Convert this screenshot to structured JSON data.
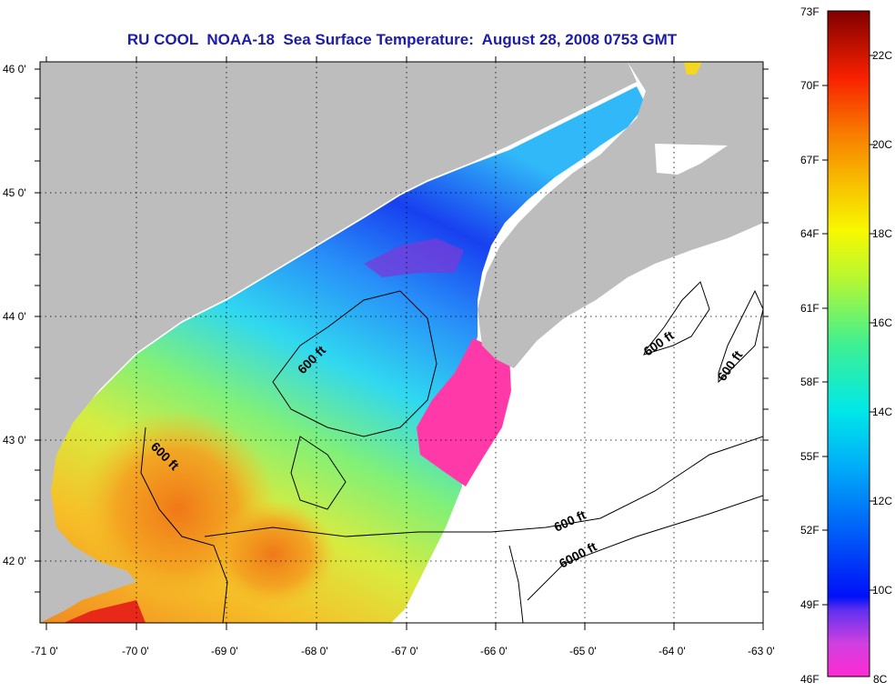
{
  "title": "RU COOL  NOAA-18  Sea Surface Temperature:  August 28, 2008 0753 GMT",
  "lat_ticks": [
    "46 0'",
    "45 0'",
    "44 0'",
    "43 0'",
    "42 0'"
  ],
  "lon_ticks": [
    "-71 0'",
    "-70 0'",
    "-69 0'",
    "-68 0'",
    "-67 0'",
    "-66 0'",
    "-65 0'",
    "-64 0'",
    "-63 0'"
  ],
  "contour_labels": [
    "600 ft",
    "600 ft",
    "600 ft",
    "600 ft",
    "600 ft",
    "6000 ft"
  ],
  "colorbar": {
    "top_label": "73F",
    "bottom_label_f": "46F",
    "bottom_label_c": "8C",
    "fahrenheit": [
      "70F",
      "67F",
      "64F",
      "61F",
      "58F",
      "55F",
      "52F",
      "49F"
    ],
    "celsius": [
      "22C",
      "20C",
      "18C",
      "16C",
      "14C",
      "12C",
      "10C"
    ]
  },
  "colors": {
    "land": "#bdbdbd",
    "no_data": "#ffffff",
    "title": "#1c1ca8",
    "cold_pink": "#ff3aa8",
    "deep_blue": "#1840f0",
    "cyan": "#30e0f0",
    "green": "#9cf060",
    "yellow": "#f4e830",
    "orange": "#f89818",
    "red": "#e8301c"
  }
}
